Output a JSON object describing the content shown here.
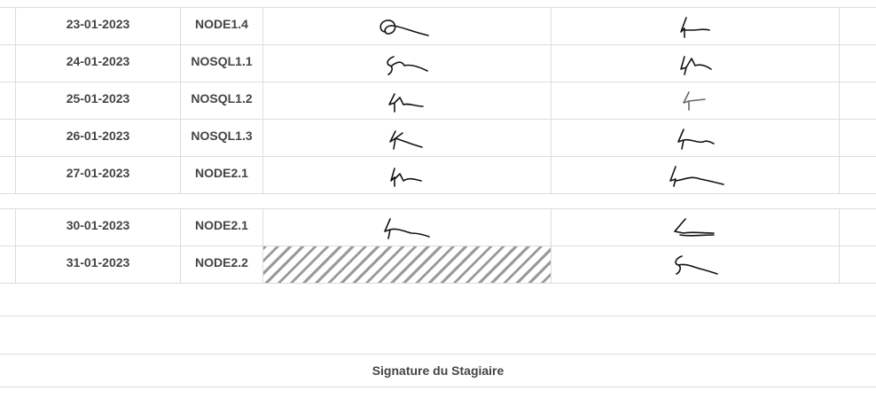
{
  "rows_block1": [
    {
      "date": "23-01-2023",
      "module": "NODE1.4"
    },
    {
      "date": "24-01-2023",
      "module": "NOSQL1.1"
    },
    {
      "date": "25-01-2023",
      "module": "NOSQL1.2"
    },
    {
      "date": "26-01-2023",
      "module": "NOSQL1.3"
    },
    {
      "date": "27-01-2023",
      "module": "NODE2.1"
    }
  ],
  "rows_block2": [
    {
      "date": "30-01-2023",
      "module": "NODE2.1"
    },
    {
      "date": "31-01-2023",
      "module": "NODE2.2"
    }
  ],
  "footer": {
    "signature_label": "Signature du Stagiaire"
  }
}
